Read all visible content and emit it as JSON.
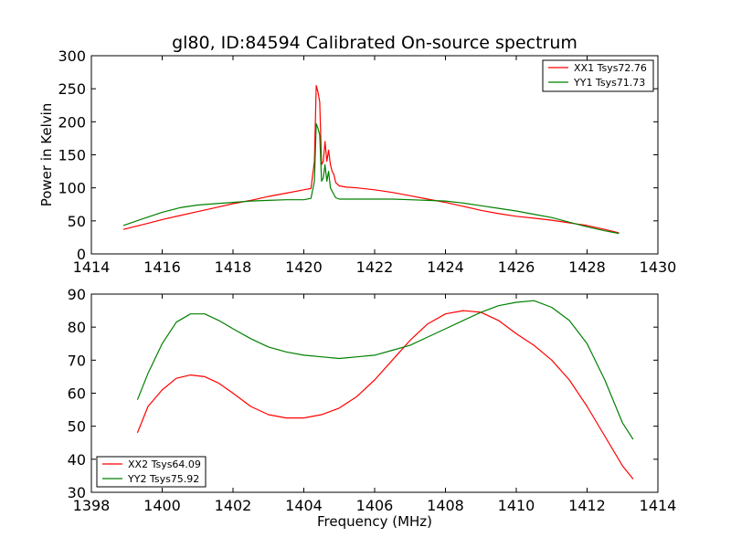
{
  "chart_data": [
    {
      "type": "line",
      "title": "gl80, ID:84594 Calibrated On-source spectrum",
      "xlabel": "",
      "ylabel": "Power in Kelvin",
      "xlim": [
        1414,
        1430
      ],
      "ylim": [
        0,
        300
      ],
      "xticks": [
        "1414",
        "1416",
        "1418",
        "1420",
        "1422",
        "1424",
        "1426",
        "1428",
        "1430"
      ],
      "yticks": [
        "0",
        "50",
        "100",
        "150",
        "200",
        "250",
        "300"
      ],
      "grid": false,
      "legend": "top-right",
      "series": [
        {
          "name": "XX1 Tsys72.76",
          "color": "#ff0000",
          "x": [
            1414.9,
            1415.5,
            1416.0,
            1416.5,
            1417.0,
            1417.5,
            1418.0,
            1418.5,
            1419.0,
            1419.5,
            1420.0,
            1420.2,
            1420.3,
            1420.35,
            1420.4,
            1420.45,
            1420.5,
            1420.55,
            1420.6,
            1420.65,
            1420.7,
            1420.75,
            1420.8,
            1420.85,
            1420.9,
            1421.0,
            1421.2,
            1421.5,
            1422.0,
            1422.5,
            1423.0,
            1423.5,
            1424.0,
            1424.5,
            1425.0,
            1425.5,
            1426.0,
            1426.5,
            1427.0,
            1427.5,
            1428.0,
            1428.5,
            1428.9
          ],
          "y": [
            37,
            45,
            52,
            58,
            64,
            70,
            76,
            81,
            87,
            92,
            97,
            99,
            140,
            255,
            245,
            230,
            135,
            140,
            170,
            140,
            157,
            135,
            125,
            120,
            108,
            103,
            101,
            100,
            97,
            93,
            88,
            83,
            78,
            72,
            66,
            61,
            57,
            54,
            51,
            47,
            43,
            37,
            32
          ]
        },
        {
          "name": "YY1 Tsys71.73",
          "color": "#008000",
          "x": [
            1414.9,
            1415.5,
            1416.0,
            1416.5,
            1417.0,
            1417.5,
            1418.0,
            1418.5,
            1419.0,
            1419.5,
            1420.0,
            1420.2,
            1420.3,
            1420.35,
            1420.4,
            1420.45,
            1420.5,
            1420.55,
            1420.6,
            1420.65,
            1420.7,
            1420.75,
            1420.8,
            1420.85,
            1420.9,
            1421.0,
            1421.5,
            1422.0,
            1422.5,
            1423.0,
            1423.5,
            1424.0,
            1424.5,
            1425.0,
            1425.5,
            1426.0,
            1426.5,
            1427.0,
            1427.5,
            1428.0,
            1428.5,
            1428.9
          ],
          "y": [
            43,
            54,
            63,
            70,
            74,
            76,
            78,
            80,
            81,
            82,
            82,
            84,
            110,
            197,
            190,
            180,
            110,
            115,
            135,
            110,
            125,
            100,
            95,
            90,
            85,
            83,
            83,
            83,
            83,
            82,
            81,
            80,
            77,
            73,
            69,
            65,
            60,
            55,
            48,
            41,
            35,
            31
          ]
        }
      ]
    },
    {
      "type": "line",
      "title": "",
      "xlabel": "Frequency (MHz)",
      "ylabel": "",
      "xlim": [
        1398,
        1414
      ],
      "ylim": [
        30,
        90
      ],
      "xticks": [
        "1398",
        "1400",
        "1402",
        "1404",
        "1406",
        "1408",
        "1410",
        "1412",
        "1414"
      ],
      "yticks": [
        "30",
        "40",
        "50",
        "60",
        "70",
        "80",
        "90"
      ],
      "grid": false,
      "legend": "bottom-left",
      "series": [
        {
          "name": "XX2 Tsys64.09",
          "color": "#ff0000",
          "x": [
            1399.3,
            1399.6,
            1400.0,
            1400.4,
            1400.8,
            1401.2,
            1401.6,
            1402.0,
            1402.5,
            1403.0,
            1403.5,
            1404.0,
            1404.5,
            1405.0,
            1405.5,
            1406.0,
            1406.5,
            1407.0,
            1407.5,
            1408.0,
            1408.5,
            1409.0,
            1409.5,
            1410.0,
            1410.5,
            1411.0,
            1411.5,
            1412.0,
            1412.5,
            1413.0,
            1413.3
          ],
          "y": [
            48,
            56,
            61,
            64.5,
            65.5,
            65,
            63,
            60,
            56,
            53.5,
            52.5,
            52.5,
            53.5,
            55.5,
            59,
            64,
            70,
            76,
            81,
            84,
            85,
            84.5,
            82,
            78,
            74.5,
            70,
            64,
            56,
            47,
            38,
            34
          ]
        },
        {
          "name": "YY2 Tsys75.92",
          "color": "#008000",
          "x": [
            1399.3,
            1399.6,
            1400.0,
            1400.4,
            1400.8,
            1401.2,
            1401.6,
            1402.0,
            1402.5,
            1403.0,
            1403.5,
            1404.0,
            1404.5,
            1405.0,
            1405.5,
            1406.0,
            1406.5,
            1407.0,
            1407.5,
            1408.0,
            1408.5,
            1409.0,
            1409.5,
            1410.0,
            1410.5,
            1411.0,
            1411.5,
            1412.0,
            1412.5,
            1413.0,
            1413.3
          ],
          "y": [
            58,
            66,
            75,
            81.5,
            84,
            84,
            82,
            79.5,
            76.5,
            74,
            72.5,
            71.5,
            71,
            70.5,
            71,
            71.5,
            73,
            74.5,
            77,
            79.5,
            82,
            84.5,
            86.5,
            87.5,
            88,
            86,
            82,
            75,
            64,
            51,
            46
          ]
        }
      ]
    }
  ]
}
